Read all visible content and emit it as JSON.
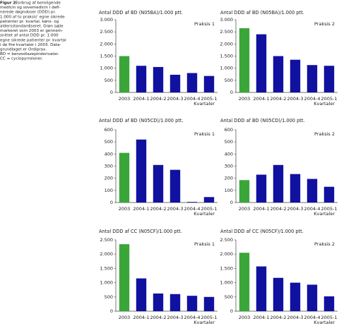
{
  "caption": {
    "label": "Figur 2.",
    "lines": [
      "Forbrug af beroligende",
      "medicin og sovemedicin i defi-",
      "nerede døgndoser (DDD) pr.",
      "1.000 af to praksis' egne sikrede",
      "patienter pr. kvartal, køns- og",
      "aldersstandardiseret. Grøn søjle",
      "markeret som 2003 er gennem-",
      "snittet af antal DDD pr. 1.000",
      "egne sikrede patienter pr. kvartal",
      "i de fire kvartaler i 2003. Data-",
      "grundlaget er Ordiprax.",
      "BD = benzodiazepinderivater.",
      "CC = cyclopyrroloner."
    ]
  },
  "chart_data": [
    {
      "type": "bar",
      "title": "Antal DDD af BD (N05BA)/1.000 ptt.",
      "annotation": "Praksis 1",
      "x_label": "Kvartaler",
      "categories": [
        "2003",
        "2004-1",
        "2004-2",
        "2004-3",
        "2004-4",
        "2005-1"
      ],
      "values": [
        1500,
        1100,
        1050,
        730,
        800,
        680
      ],
      "colors": [
        "#3aa63a",
        "#1111a0",
        "#1111a0",
        "#1111a0",
        "#1111a0",
        "#1111a0"
      ],
      "ylim": [
        0,
        3000
      ],
      "yticks": [
        0,
        {
          "value": 500,
          "label": "500"
        },
        {
          "value": 1000,
          "label": "1.000"
        },
        {
          "value": 1500,
          "label": "1.500"
        },
        {
          "value": 2000,
          "label": "2.000"
        },
        {
          "value": 2500,
          "label": "2.500"
        },
        {
          "value": 3000,
          "label": "3.000"
        }
      ]
    },
    {
      "type": "bar",
      "title": "Antal DDD af BD (N05BA)/1.000 ptt.",
      "annotation": "Praksis 2",
      "x_label": "Kvartaler",
      "categories": [
        "2003",
        "2004-1",
        "2004-2",
        "2004-3",
        "2004-4",
        "2005-1"
      ],
      "values": [
        2650,
        2400,
        1500,
        1350,
        1130,
        1100
      ],
      "colors": [
        "#3aa63a",
        "#1111a0",
        "#1111a0",
        "#1111a0",
        "#1111a0",
        "#1111a0"
      ],
      "ylim": [
        0,
        3000
      ],
      "yticks": [
        0,
        {
          "value": 500,
          "label": "500"
        },
        {
          "value": 1000,
          "label": "1.000"
        },
        {
          "value": 1500,
          "label": "1.500"
        },
        {
          "value": 2000,
          "label": "2.000"
        },
        {
          "value": 2500,
          "label": "2.500"
        },
        {
          "value": 3000,
          "label": "3.000"
        }
      ]
    },
    {
      "type": "bar",
      "title": "Antal DDD af BD (N05CD)/1.000 ptt.",
      "annotation": "Praksis 1",
      "x_label": "Kvartaler",
      "categories": [
        "2003",
        "2004-1",
        "2004-2",
        "2004-3",
        "2004-4",
        "2005-1"
      ],
      "values": [
        410,
        520,
        310,
        270,
        5,
        45
      ],
      "colors": [
        "#3aa63a",
        "#1111a0",
        "#1111a0",
        "#1111a0",
        "#1111a0",
        "#1111a0"
      ],
      "ylim": [
        0,
        600
      ],
      "yticks": [
        0,
        100,
        200,
        300,
        400,
        500,
        600
      ]
    },
    {
      "type": "bar",
      "title": "Antal DDD af BD (N05CD)/1.000 ptt.",
      "annotation": "Praksis 2",
      "x_label": "Kvartaler",
      "categories": [
        "2003",
        "2004-1",
        "2004-2",
        "2004-3",
        "2004-4",
        "2005-1"
      ],
      "values": [
        185,
        230,
        310,
        235,
        195,
        130
      ],
      "colors": [
        "#3aa63a",
        "#1111a0",
        "#1111a0",
        "#1111a0",
        "#1111a0",
        "#1111a0"
      ],
      "ylim": [
        0,
        600
      ],
      "yticks": [
        0,
        100,
        200,
        300,
        400,
        500,
        600
      ]
    },
    {
      "type": "bar",
      "title": "Antal DDD af CC (N05CF)/1.000 ptt.",
      "annotation": "Praksis 1",
      "x_label": "Kvartaler",
      "categories": [
        "2003",
        "2004-1",
        "2004-2",
        "2004-3",
        "2004-4",
        "2005-1"
      ],
      "values": [
        2350,
        1150,
        620,
        600,
        540,
        500
      ],
      "colors": [
        "#3aa63a",
        "#1111a0",
        "#1111a0",
        "#1111a0",
        "#1111a0",
        "#1111a0"
      ],
      "ylim": [
        0,
        2500
      ],
      "yticks": [
        0,
        {
          "value": 500,
          "label": "500"
        },
        {
          "value": 1000,
          "label": "1.000"
        },
        {
          "value": 1500,
          "label": "1.500"
        },
        {
          "value": 2000,
          "label": "2.000"
        },
        {
          "value": 2500,
          "label": "2.500"
        }
      ]
    },
    {
      "type": "bar",
      "title": "Antal DDD af CC (N05CF)/1.000 ptt.",
      "annotation": "Praksis 2",
      "x_label": "Kvartaler",
      "categories": [
        "2003",
        "2004-1",
        "2004-2",
        "2004-3",
        "2004-4",
        "2005-1"
      ],
      "values": [
        2050,
        1570,
        1170,
        1000,
        930,
        520
      ],
      "colors": [
        "#3aa63a",
        "#1111a0",
        "#1111a0",
        "#1111a0",
        "#1111a0",
        "#1111a0"
      ],
      "ylim": [
        0,
        2500
      ],
      "yticks": [
        0,
        {
          "value": 500,
          "label": "500"
        },
        {
          "value": 1000,
          "label": "1.000"
        },
        {
          "value": 1500,
          "label": "1.500"
        },
        {
          "value": 2000,
          "label": "2.000"
        },
        {
          "value": 2500,
          "label": "2.500"
        }
      ]
    }
  ]
}
